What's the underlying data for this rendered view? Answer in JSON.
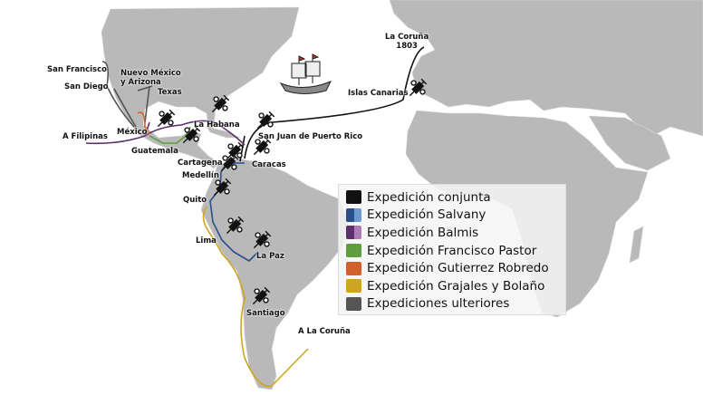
{
  "map_labels": {
    "la_coruna": "La Coruña",
    "year": "1803",
    "islas_canarias": "Islas Canarias",
    "san_francisco": "San Francisco",
    "san_diego": "San Diego",
    "nuevo_mexico": "Nuevo México",
    "y_arizona": "y Arizona",
    "texas": "Texas",
    "la_habana": "La Habana",
    "san_juan": "San Juan de Puerto Rico",
    "a_filipinas": "A Filipinas",
    "mexico": "México",
    "guatemala": "Guatemala",
    "cartagena": "Cartagena",
    "caracas": "Caracas",
    "medellin": "Medellín",
    "quito": "Quito",
    "lima": "Lima",
    "la_paz": "La Paz",
    "santiago": "Santiago",
    "a_la_coruna": "A La Coruña"
  },
  "legend": [
    {
      "label": "Expedición conjunta",
      "colors": [
        "#111111"
      ]
    },
    {
      "label": "Expedición Salvany",
      "colors": [
        "#2b4f8c",
        "#6a9ad0"
      ]
    },
    {
      "label": "Expedición Balmis",
      "colors": [
        "#5b2f6b",
        "#b07cb8"
      ]
    },
    {
      "label": "Expedición Francisco Pastor",
      "colors": [
        "#5f9e3f"
      ]
    },
    {
      "label": "Expedición Gutierrez Robredo",
      "colors": [
        "#d2602a"
      ]
    },
    {
      "label": "Expedición Grajales y Bolaño",
      "colors": [
        "#cfa51f"
      ]
    },
    {
      "label": "Expediciones ulteriores",
      "colors": [
        "#555555"
      ]
    }
  ],
  "colors": {
    "land": "#b9b9b9",
    "water": "#ffffff"
  }
}
